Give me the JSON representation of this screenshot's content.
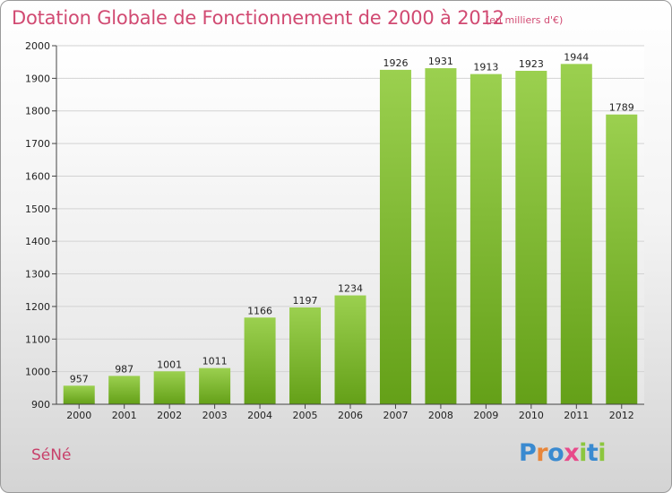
{
  "chart_data": {
    "type": "bar",
    "title": "Dotation Globale de Fonctionnement de 2000 à 2012",
    "unit": "(en milliers d'€)",
    "categories": [
      "2000",
      "2001",
      "2002",
      "2003",
      "2004",
      "2005",
      "2006",
      "2007",
      "2008",
      "2009",
      "2010",
      "2011",
      "2012"
    ],
    "values": [
      957,
      987,
      1001,
      1011,
      1166,
      1197,
      1234,
      1926,
      1931,
      1913,
      1923,
      1944,
      1789
    ],
    "ylim": [
      900,
      2000
    ],
    "yticks": [
      900,
      1000,
      1100,
      1200,
      1300,
      1400,
      1500,
      1600,
      1700,
      1800,
      1900,
      2000
    ],
    "grid": true,
    "xlabel": "",
    "ylabel": "",
    "bar_color_top": "#9bd04f",
    "bar_color_bottom": "#64a018"
  },
  "footer": {
    "commune": "SéNé",
    "brand_letters": [
      {
        "ch": "P",
        "color": "#3a8ad0"
      },
      {
        "ch": "r",
        "color": "#e8863a"
      },
      {
        "ch": "o",
        "color": "#3a8ad0"
      },
      {
        "ch": "x",
        "color": "#e84a8a"
      },
      {
        "ch": "i",
        "color": "#8cc63e"
      },
      {
        "ch": "t",
        "color": "#3a8ad0"
      },
      {
        "ch": "i",
        "color": "#8cc63e"
      }
    ]
  }
}
